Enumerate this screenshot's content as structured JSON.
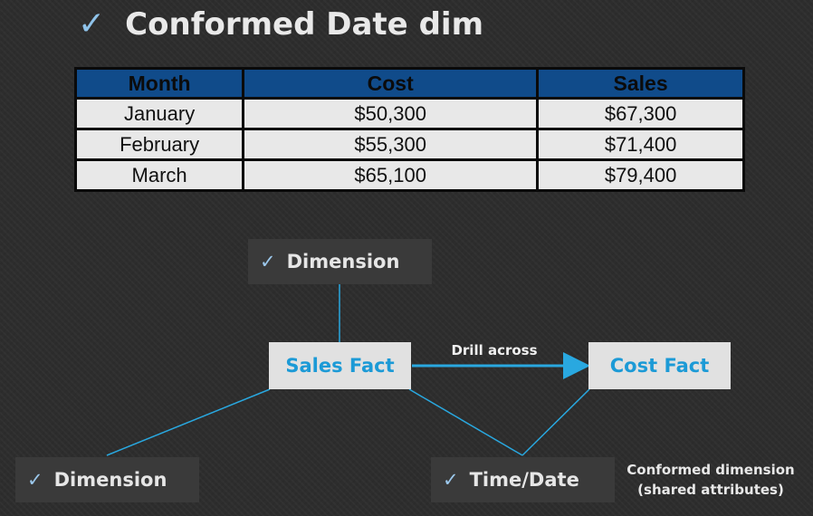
{
  "title": "Conformed Date dim",
  "table": {
    "headers": [
      "Month",
      "Cost",
      "Sales"
    ],
    "rows": [
      [
        "January",
        "$50,300",
        "$67,300"
      ],
      [
        "February",
        "$55,300",
        "$71,400"
      ],
      [
        "March",
        "$65,100",
        "$79,400"
      ]
    ]
  },
  "diagram": {
    "top_dimension": "Dimension",
    "left_dimension": "Dimension",
    "time_dimension": "Time/Date",
    "sales_fact": "Sales Fact",
    "cost_fact": "Cost Fact",
    "drill_label": "Drill across",
    "note_line1": "Conformed dimension",
    "note_line2": "(shared attributes)"
  },
  "colors": {
    "accent": "#1c9ad6",
    "header_bg": "#104b8a",
    "line": "#29a8e0"
  }
}
